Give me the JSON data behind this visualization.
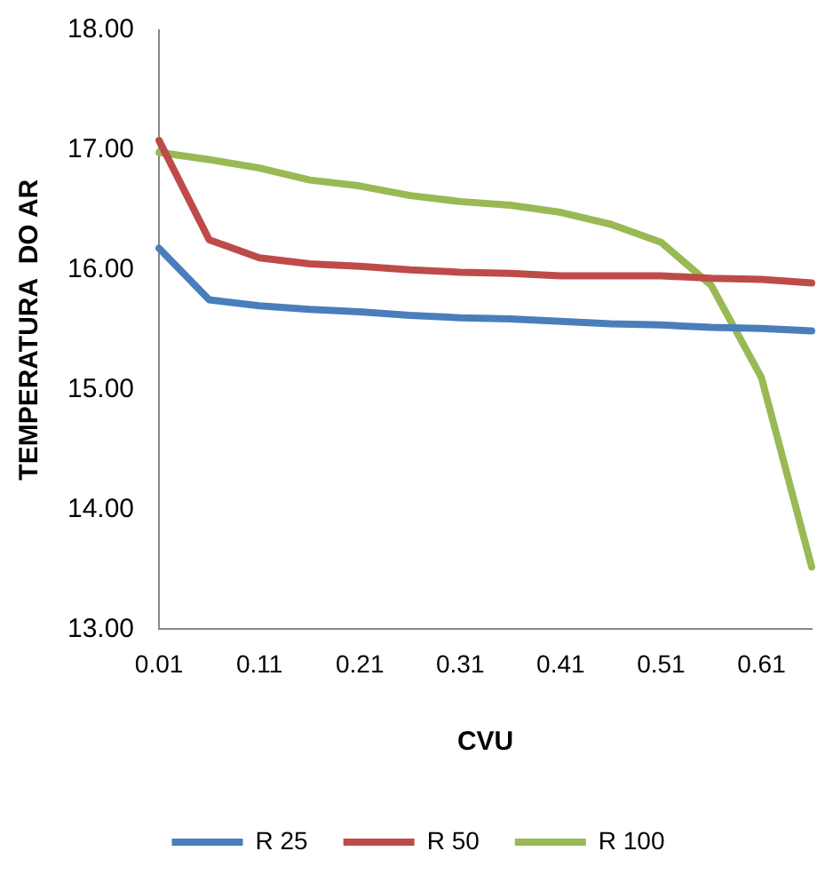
{
  "chart_data": {
    "type": "line",
    "xlabel": "CVU",
    "ylabel": "TEMPERATURA  DO AR",
    "categories": [
      "0.01",
      null,
      "0.11",
      null,
      "0.21",
      null,
      "0.31",
      null,
      "0.41",
      null,
      "0.51",
      null,
      "0.61",
      null
    ],
    "series": [
      {
        "name": "R 25",
        "color": "#4a7ebb",
        "values": [
          16.18,
          15.75,
          15.7,
          15.67,
          15.65,
          15.62,
          15.6,
          15.59,
          15.57,
          15.55,
          15.54,
          15.52,
          15.51,
          15.49
        ]
      },
      {
        "name": "R 50",
        "color": "#be4b48",
        "values": [
          17.08,
          16.25,
          16.1,
          16.05,
          16.03,
          16.0,
          15.98,
          15.97,
          15.95,
          15.95,
          15.95,
          15.93,
          15.92,
          15.89
        ]
      },
      {
        "name": "R 100",
        "color": "#98b954",
        "values": [
          16.98,
          16.92,
          16.85,
          16.75,
          16.7,
          16.62,
          16.57,
          16.54,
          16.48,
          16.38,
          16.23,
          15.87,
          15.1,
          13.52
        ]
      }
    ],
    "ylim": [
      13,
      18
    ],
    "yticks": [
      {
        "value": 13,
        "label": "13.00"
      },
      {
        "value": 14,
        "label": "14.00"
      },
      {
        "value": 15,
        "label": "15.00"
      },
      {
        "value": 16,
        "label": "16.00"
      },
      {
        "value": 17,
        "label": "17.00"
      },
      {
        "value": 18,
        "label": "18.00"
      }
    ],
    "grid": false,
    "legend": "bottom",
    "marker": "none",
    "line_style": "solid"
  }
}
